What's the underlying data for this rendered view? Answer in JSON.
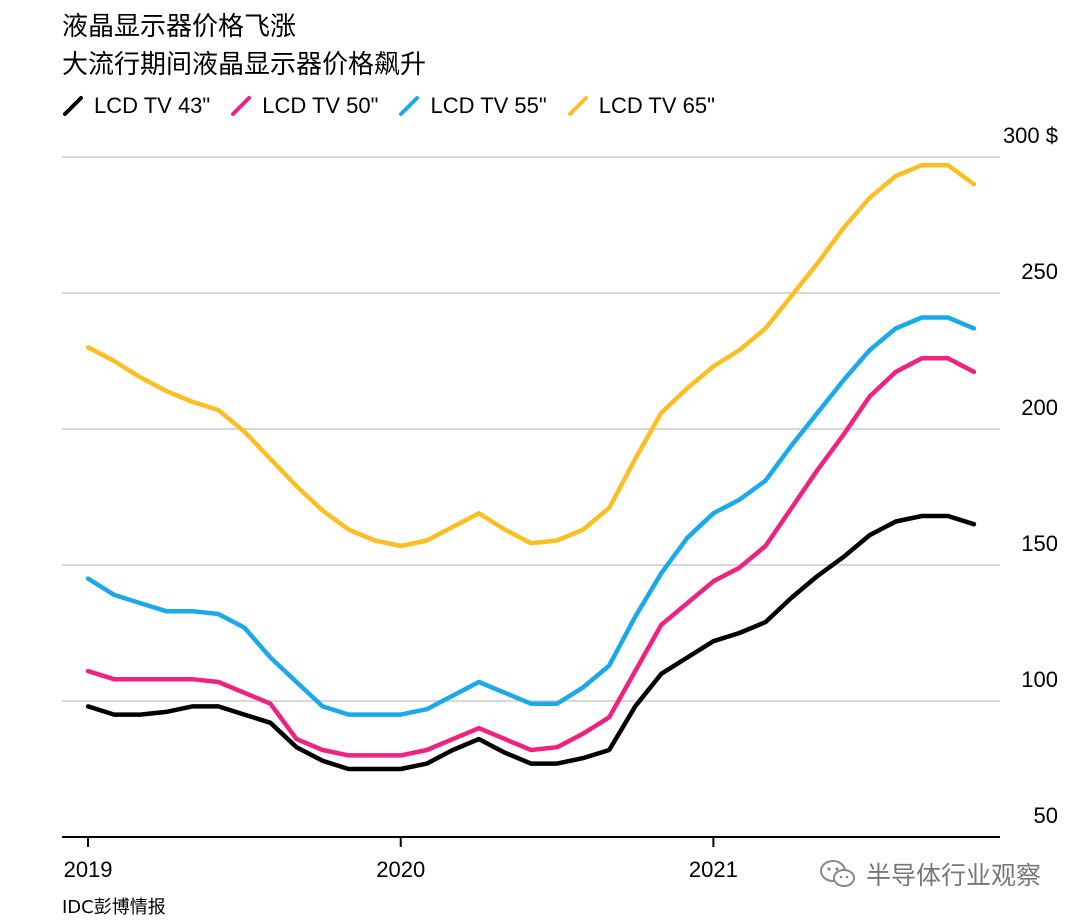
{
  "title": "液晶显示器价格飞涨",
  "subtitle": "大流行期间液晶显示器价格飙升",
  "source": "IDC彭博情报",
  "watermark": "半导体行业观察",
  "chart_data": {
    "type": "line",
    "title": "液晶显示器价格飞涨",
    "subtitle": "大流行期间液晶显示器价格飙升",
    "ytick_labels": [
      "50",
      "100",
      "150",
      "200",
      "250",
      "300 $"
    ],
    "yticks": [
      50,
      100,
      150,
      200,
      250,
      300
    ],
    "ylim": [
      50,
      300
    ],
    "xtick_labels": [
      "2019",
      "2020",
      "2021"
    ],
    "xticks": [
      0,
      12,
      24
    ],
    "xlim": [
      -1,
      35
    ],
    "legend_position": "top-left",
    "grid": "horizontal",
    "x": [
      0,
      1,
      2,
      3,
      4,
      5,
      6,
      7,
      8,
      9,
      10,
      11,
      12,
      13,
      14,
      15,
      16,
      17,
      18,
      19,
      20,
      21,
      22,
      23,
      24,
      25,
      26,
      27,
      28,
      29,
      30,
      31,
      32,
      33,
      34
    ],
    "series": [
      {
        "name": "LCD TV 43\"",
        "color": "#000000",
        "values": [
          98,
          95,
          95,
          96,
          98,
          98,
          95,
          92,
          83,
          78,
          75,
          75,
          75,
          77,
          82,
          86,
          81,
          77,
          77,
          79,
          82,
          98,
          110,
          116,
          122,
          125,
          129,
          138,
          146,
          153,
          161,
          166,
          168,
          168,
          165
        ]
      },
      {
        "name": "LCD TV 50\"",
        "color": "#f0217f",
        "values": [
          111,
          108,
          108,
          108,
          108,
          107,
          103,
          99,
          86,
          82,
          80,
          80,
          80,
          82,
          86,
          90,
          86,
          82,
          83,
          88,
          94,
          111,
          128,
          136,
          144,
          149,
          157,
          171,
          185,
          198,
          212,
          221,
          226,
          226,
          221
        ]
      },
      {
        "name": "LCD TV 55\"",
        "color": "#1aa9ea",
        "values": [
          145,
          139,
          136,
          133,
          133,
          132,
          127,
          116,
          107,
          98,
          95,
          95,
          95,
          97,
          102,
          107,
          103,
          99,
          99,
          105,
          113,
          131,
          147,
          160,
          169,
          174,
          181,
          194,
          206,
          218,
          229,
          237,
          241,
          241,
          237
        ]
      },
      {
        "name": "LCD TV 65\"",
        "color": "#fbbf24",
        "values": [
          230,
          225,
          219,
          214,
          210,
          207,
          199,
          189,
          179,
          170,
          163,
          159,
          157,
          159,
          164,
          169,
          163,
          158,
          159,
          163,
          171,
          189,
          206,
          215,
          223,
          229,
          237,
          249,
          261,
          274,
          285,
          293,
          297,
          297,
          290
        ]
      }
    ]
  }
}
